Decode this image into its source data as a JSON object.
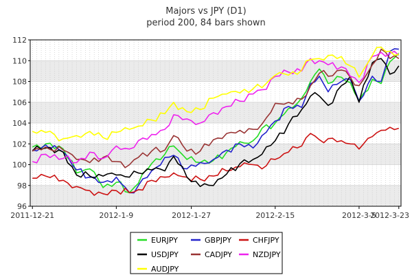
{
  "chart_data": {
    "type": "line",
    "title": "Majors vs JPY (D1)",
    "subtitle": "period 200, 84 bars shown",
    "xlabel": "",
    "ylabel": "",
    "ylim": [
      96,
      112
    ],
    "yticks": [
      96,
      98,
      100,
      102,
      104,
      106,
      108,
      110,
      112
    ],
    "x_tick_labels": [
      "2011-12-21",
      "2012-1-9",
      "2012-1-27",
      "2012-2-15",
      "2012-3-5",
      "2012-3-23"
    ],
    "x_tick_positions": [
      0,
      19,
      36,
      55,
      74,
      83
    ],
    "bars_shown": 84,
    "grid": true,
    "legend_position": "bottom",
    "series": [
      {
        "name": "EURJPY",
        "color": "#22dd22",
        "anchors": [
          [
            0,
            101.7
          ],
          [
            3,
            102.0
          ],
          [
            7,
            101.5
          ],
          [
            10,
            99.2
          ],
          [
            13,
            99.6
          ],
          [
            16,
            97.8
          ],
          [
            19,
            98.3
          ],
          [
            22,
            97.3
          ],
          [
            24,
            98.2
          ],
          [
            27,
            100.1
          ],
          [
            30,
            101.0
          ],
          [
            32,
            101.8
          ],
          [
            35,
            100.5
          ],
          [
            38,
            100.2
          ],
          [
            41,
            100.4
          ],
          [
            44,
            101.2
          ],
          [
            47,
            102.2
          ],
          [
            50,
            102.3
          ],
          [
            52,
            103.5
          ],
          [
            55,
            104.0
          ],
          [
            58,
            105.4
          ],
          [
            61,
            106.4
          ],
          [
            63,
            108.0
          ],
          [
            65,
            109.2
          ],
          [
            67,
            107.8
          ],
          [
            70,
            108.4
          ],
          [
            72,
            107.9
          ],
          [
            74,
            106.2
          ],
          [
            77,
            108.2
          ],
          [
            79,
            107.8
          ],
          [
            81,
            109.9
          ],
          [
            83,
            110.7
          ]
        ],
        "values": []
      },
      {
        "name": "GBPJPY",
        "color": "#2222cc",
        "anchors": [
          [
            0,
            101.4
          ],
          [
            3,
            101.9
          ],
          [
            7,
            101.2
          ],
          [
            10,
            99.5
          ],
          [
            13,
            98.8
          ],
          [
            16,
            98.3
          ],
          [
            19,
            98.8
          ],
          [
            22,
            97.3
          ],
          [
            24,
            98.0
          ],
          [
            27,
            99.4
          ],
          [
            30,
            100.7
          ],
          [
            32,
            100.9
          ],
          [
            35,
            99.6
          ],
          [
            38,
            100.2
          ],
          [
            41,
            100.5
          ],
          [
            44,
            101.4
          ],
          [
            47,
            102.0
          ],
          [
            50,
            101.6
          ],
          [
            52,
            102.8
          ],
          [
            55,
            104.2
          ],
          [
            58,
            105.6
          ],
          [
            61,
            105.5
          ],
          [
            63,
            107.8
          ],
          [
            65,
            108.5
          ],
          [
            67,
            107.0
          ],
          [
            70,
            108.0
          ],
          [
            72,
            108.2
          ],
          [
            74,
            106.1
          ],
          [
            77,
            108.5
          ],
          [
            79,
            108.0
          ],
          [
            81,
            110.9
          ],
          [
            83,
            111.1
          ]
        ],
        "values": []
      },
      {
        "name": "CHFJPY",
        "color": "#cc1111",
        "anchors": [
          [
            0,
            98.7
          ],
          [
            3,
            98.9
          ],
          [
            7,
            98.5
          ],
          [
            10,
            97.9
          ],
          [
            13,
            97.5
          ],
          [
            16,
            97.2
          ],
          [
            19,
            97.5
          ],
          [
            22,
            97.3
          ],
          [
            24,
            97.6
          ],
          [
            27,
            98.5
          ],
          [
            30,
            98.8
          ],
          [
            32,
            99.2
          ],
          [
            35,
            98.8
          ],
          [
            38,
            98.6
          ],
          [
            41,
            98.9
          ],
          [
            44,
            99.4
          ],
          [
            47,
            99.8
          ],
          [
            50,
            100.0
          ],
          [
            52,
            99.6
          ],
          [
            55,
            100.5
          ],
          [
            58,
            101.2
          ],
          [
            61,
            101.8
          ],
          [
            63,
            103.0
          ],
          [
            65,
            102.4
          ],
          [
            67,
            102.5
          ],
          [
            70,
            102.3
          ],
          [
            72,
            102.0
          ],
          [
            74,
            101.5
          ],
          [
            77,
            102.7
          ],
          [
            79,
            103.3
          ],
          [
            81,
            103.6
          ],
          [
            83,
            103.5
          ]
        ],
        "values": []
      },
      {
        "name": "USDJPY",
        "color": "#000000",
        "anchors": [
          [
            0,
            101.3
          ],
          [
            3,
            101.6
          ],
          [
            7,
            101.2
          ],
          [
            10,
            99.0
          ],
          [
            13,
            98.9
          ],
          [
            16,
            98.9
          ],
          [
            19,
            99.0
          ],
          [
            22,
            98.8
          ],
          [
            24,
            99.2
          ],
          [
            27,
            99.5
          ],
          [
            30,
            99.4
          ],
          [
            32,
            100.8
          ],
          [
            35,
            98.8
          ],
          [
            38,
            97.9
          ],
          [
            41,
            98.0
          ],
          [
            44,
            99.1
          ],
          [
            47,
            100.1
          ],
          [
            50,
            100.5
          ],
          [
            52,
            101.0
          ],
          [
            55,
            102.3
          ],
          [
            58,
            103.9
          ],
          [
            61,
            105.3
          ],
          [
            63,
            106.6
          ],
          [
            65,
            106.6
          ],
          [
            67,
            105.7
          ],
          [
            70,
            107.6
          ],
          [
            72,
            108.5
          ],
          [
            74,
            106.0
          ],
          [
            77,
            109.8
          ],
          [
            79,
            110.2
          ],
          [
            81,
            108.7
          ],
          [
            83,
            109.5
          ]
        ],
        "values": []
      },
      {
        "name": "CADJPY",
        "color": "#993333",
        "anchors": [
          [
            0,
            101.3
          ],
          [
            3,
            101.7
          ],
          [
            7,
            101.4
          ],
          [
            10,
            100.5
          ],
          [
            13,
            100.2
          ],
          [
            16,
            100.7
          ],
          [
            19,
            100.3
          ],
          [
            22,
            100.0
          ],
          [
            24,
            100.7
          ],
          [
            27,
            101.3
          ],
          [
            30,
            101.4
          ],
          [
            32,
            102.8
          ],
          [
            35,
            101.3
          ],
          [
            38,
            101.3
          ],
          [
            41,
            102.4
          ],
          [
            44,
            103.0
          ],
          [
            47,
            103.3
          ],
          [
            50,
            103.4
          ],
          [
            52,
            103.9
          ],
          [
            55,
            105.9
          ],
          [
            58,
            106.0
          ],
          [
            61,
            106.3
          ],
          [
            63,
            107.6
          ],
          [
            65,
            108.8
          ],
          [
            67,
            108.5
          ],
          [
            70,
            109.1
          ],
          [
            72,
            108.4
          ],
          [
            74,
            107.6
          ],
          [
            77,
            109.6
          ],
          [
            79,
            111.1
          ],
          [
            81,
            110.2
          ],
          [
            83,
            110.2
          ]
        ],
        "values": []
      },
      {
        "name": "NZDJPY",
        "color": "#ee22ee",
        "anchors": [
          [
            0,
            100.3
          ],
          [
            3,
            101.0
          ],
          [
            7,
            100.6
          ],
          [
            10,
            100.2
          ],
          [
            13,
            101.2
          ],
          [
            16,
            100.6
          ],
          [
            19,
            101.8
          ],
          [
            22,
            101.5
          ],
          [
            24,
            102.3
          ],
          [
            27,
            102.9
          ],
          [
            30,
            103.4
          ],
          [
            32,
            104.8
          ],
          [
            35,
            104.4
          ],
          [
            38,
            104.0
          ],
          [
            41,
            105.0
          ],
          [
            44,
            105.6
          ],
          [
            47,
            106.1
          ],
          [
            50,
            106.8
          ],
          [
            52,
            107.2
          ],
          [
            55,
            108.5
          ],
          [
            58,
            108.9
          ],
          [
            61,
            109.0
          ],
          [
            63,
            110.2
          ],
          [
            65,
            110.0
          ],
          [
            67,
            109.6
          ],
          [
            70,
            109.4
          ],
          [
            72,
            108.5
          ],
          [
            74,
            107.9
          ],
          [
            77,
            110.4
          ],
          [
            79,
            110.8
          ],
          [
            81,
            110.7
          ],
          [
            83,
            110.5
          ]
        ],
        "values": []
      },
      {
        "name": "AUDJPY",
        "color": "#ffff00",
        "anchors": [
          [
            0,
            103.2
          ],
          [
            3,
            103.1
          ],
          [
            7,
            102.5
          ],
          [
            10,
            102.8
          ],
          [
            13,
            103.2
          ],
          [
            16,
            102.6
          ],
          [
            19,
            103.1
          ],
          [
            22,
            103.4
          ],
          [
            24,
            103.7
          ],
          [
            27,
            104.3
          ],
          [
            30,
            104.9
          ],
          [
            32,
            106.0
          ],
          [
            35,
            105.1
          ],
          [
            38,
            105.3
          ],
          [
            41,
            106.4
          ],
          [
            44,
            106.8
          ],
          [
            47,
            106.9
          ],
          [
            50,
            107.3
          ],
          [
            52,
            107.4
          ],
          [
            55,
            108.6
          ],
          [
            58,
            108.6
          ],
          [
            61,
            109.1
          ],
          [
            63,
            110.1
          ],
          [
            65,
            110.2
          ],
          [
            67,
            110.5
          ],
          [
            70,
            110.4
          ],
          [
            72,
            109.5
          ],
          [
            74,
            108.4
          ],
          [
            77,
            110.5
          ],
          [
            79,
            111.3
          ],
          [
            81,
            110.9
          ],
          [
            83,
            110.6
          ]
        ],
        "values": []
      }
    ]
  }
}
